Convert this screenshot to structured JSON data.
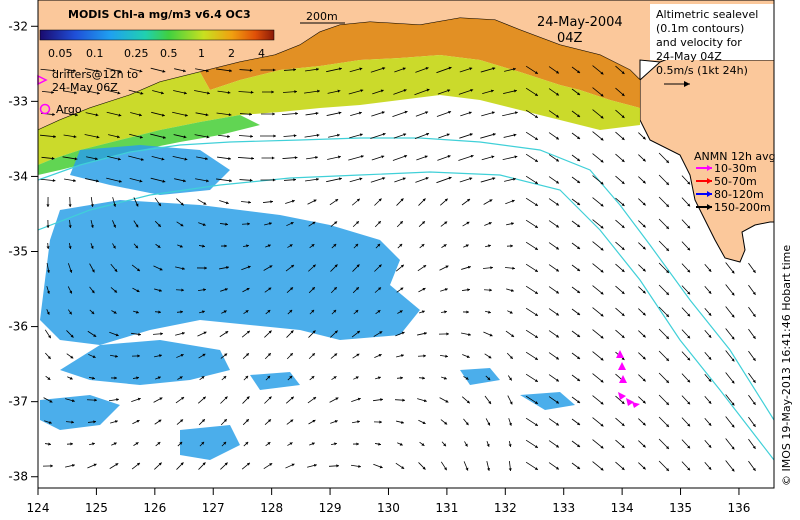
{
  "colorbar": {
    "title": "MODIS Chl-a mg/m3 v6.4 OC3",
    "ticks": [
      "0.05",
      "0.1",
      "0.25",
      "0.5",
      "1",
      "2",
      "4"
    ]
  },
  "scale_label": "200m",
  "date": "24-May-2004",
  "time": "04Z",
  "altimetry_note": [
    "Altimetric sealevel",
    "(0.1m contours)",
    "and velocity for",
    "24-May 04Z",
    "0.5m/s (1kt 24h)"
  ],
  "drifters_label": [
    "drifters@12h to",
    "24-May 06Z"
  ],
  "argo_label": "Argo",
  "anmn": {
    "title": "ANMN 12h avg",
    "items": [
      {
        "label": "10-30m",
        "color": "#ff00ff"
      },
      {
        "label": "50-70m",
        "color": "#ff0000"
      },
      {
        "label": "80-120m",
        "color": "#0000ff"
      },
      {
        "label": "150-200m",
        "color": "#000000"
      }
    ]
  },
  "x_ticks": [
    "124",
    "125",
    "126",
    "127",
    "128",
    "129",
    "130",
    "131",
    "132",
    "133",
    "134",
    "135",
    "136"
  ],
  "y_ticks": [
    "-32",
    "-33",
    "-34",
    "-35",
    "-36",
    "-37",
    "-38"
  ],
  "credit": "© IMOS 19-May-2013 16:41:46 Hobart time",
  "colors": {
    "land": "#fbc89b",
    "ocean": "#ffffff",
    "contour": "#40d0d8",
    "vector": "#000000",
    "drifter": "#ff00ff"
  }
}
